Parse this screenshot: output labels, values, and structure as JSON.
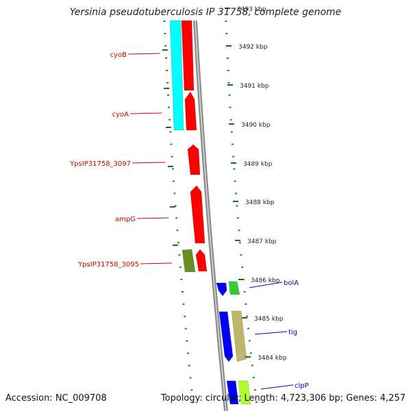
{
  "title": "Yersinia pseudotuberculosis IP 31758, complete genome",
  "footer": {
    "accession": "Accession: NC_009708",
    "topology": "Topology: circular; Length: 4,723,306 bp; Genes: 4,257"
  },
  "colors": {
    "cds_forward_outer": "#ff0000",
    "cds_left": "#00ffff",
    "cds_green": "#6b8e23",
    "cds_blue": "#0000ff",
    "cds_light_green": "#32cd32",
    "cds_tan": "#bdb76b",
    "tick_green": "#2e7d32",
    "label_red": "#cc0000",
    "label_blue": "#0000cc",
    "backbone": "#808080"
  },
  "ticks": [
    "3493 kbp",
    "3492 kbp",
    "3491 kbp",
    "3490 kbp",
    "3489 kbp",
    "3488 kbp",
    "3487 kbp",
    "3486 kbp",
    "3485 kbp",
    "3484 kbp"
  ],
  "gene_labels_left": [
    "cyoB",
    "cyoA",
    "YpsIP31758_3097",
    "ampG",
    "YpsIP31758_3095"
  ],
  "gene_labels_right": [
    "bolA",
    "tig",
    "clpP"
  ]
}
